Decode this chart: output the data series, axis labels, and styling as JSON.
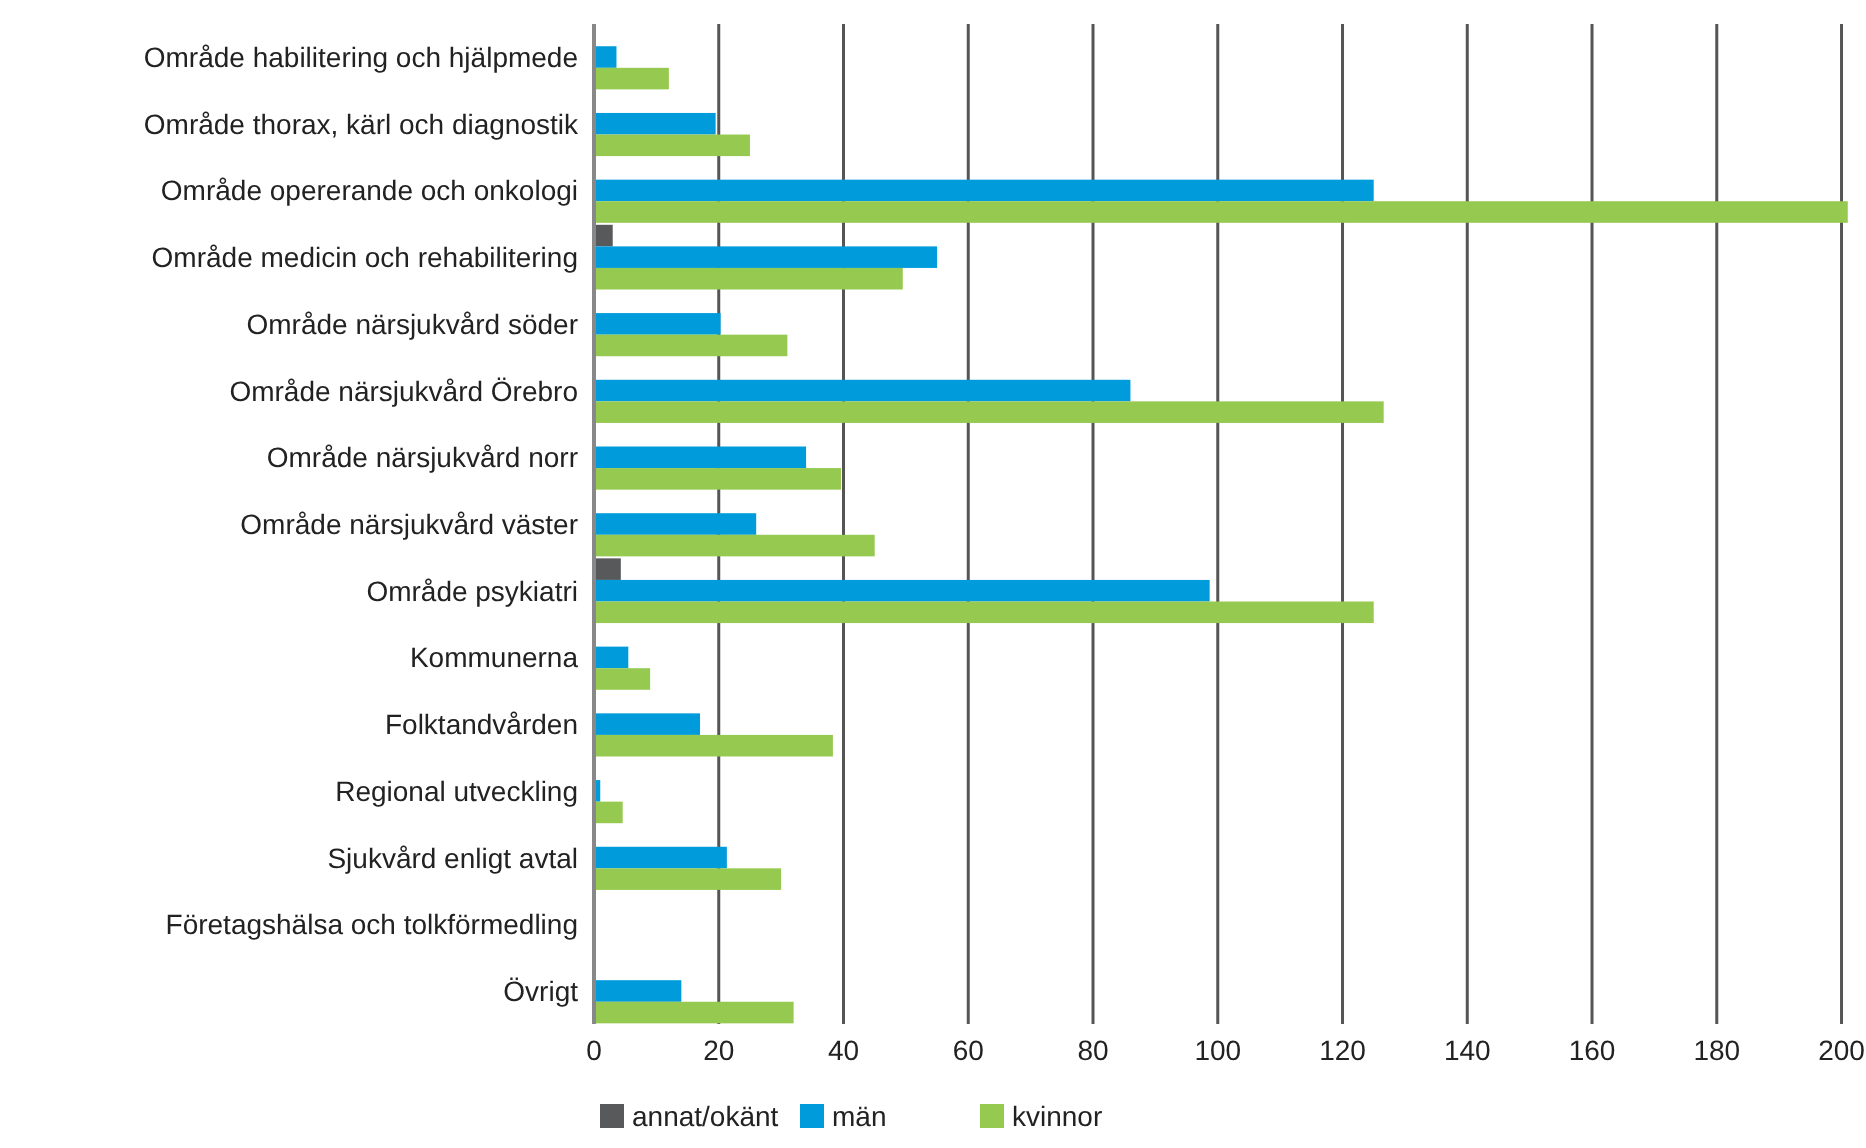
{
  "chart_data": {
    "type": "bar",
    "orientation": "horizontal",
    "categories": [
      "Område habilitering och hjälpmede",
      "Område thorax, kärl och diagnostik",
      "Område opererande och onkologi",
      "Område medicin och rehabilitering",
      "Område närsjukvård söder",
      "Område närsjukvård Örebro",
      "Område närsjukvård norr",
      "Område närsjukvård väster",
      "Område psykiatri",
      "Kommunerna",
      "Folktandvården",
      "Regional utveckling",
      "Sjukvård enligt avtal",
      "Företagshälsa och tolkförmedling",
      "Övrigt"
    ],
    "series": [
      {
        "name": "annat/okänt",
        "color": "#58595b",
        "values": [
          null,
          null,
          null,
          3,
          null,
          null,
          null,
          null,
          4.3,
          null,
          null,
          null,
          null,
          null,
          null
        ]
      },
      {
        "name": "män",
        "color": "#009bdb",
        "values": [
          3.6,
          19.5,
          125,
          55,
          20.3,
          86,
          34,
          26,
          98.7,
          5.5,
          17,
          1,
          21.3,
          null,
          14
        ]
      },
      {
        "name": "kvinnor",
        "color": "#95c94f",
        "values": [
          12,
          25,
          201,
          49.5,
          31,
          126.6,
          39.6,
          45,
          125,
          9,
          38.3,
          4.6,
          30,
          null,
          32
        ]
      }
    ],
    "xlim": [
      0,
      202
    ],
    "xticks": [
      0,
      20,
      40,
      60,
      80,
      100,
      120,
      140,
      160,
      180,
      200
    ],
    "grid": "x",
    "legend": "bottom"
  }
}
